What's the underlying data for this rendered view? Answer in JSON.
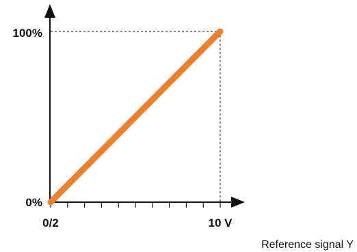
{
  "chart_data": {
    "type": "line",
    "title": "",
    "xlabel": "Reference signal Y",
    "ylabel": "",
    "x_tick_labels": [
      "0/2",
      "10 V"
    ],
    "y_tick_labels": [
      "0%",
      "100%"
    ],
    "xlim": [
      0,
      10
    ],
    "ylim": [
      0,
      100
    ],
    "minor_x_ticks": 10,
    "grid": false,
    "reference_lines": "dashed guides from 100% and 10 V to the end point",
    "series": [
      {
        "color": "#f07f2a",
        "x": [
          0,
          10
        ],
        "y": [
          0,
          100
        ]
      }
    ]
  }
}
